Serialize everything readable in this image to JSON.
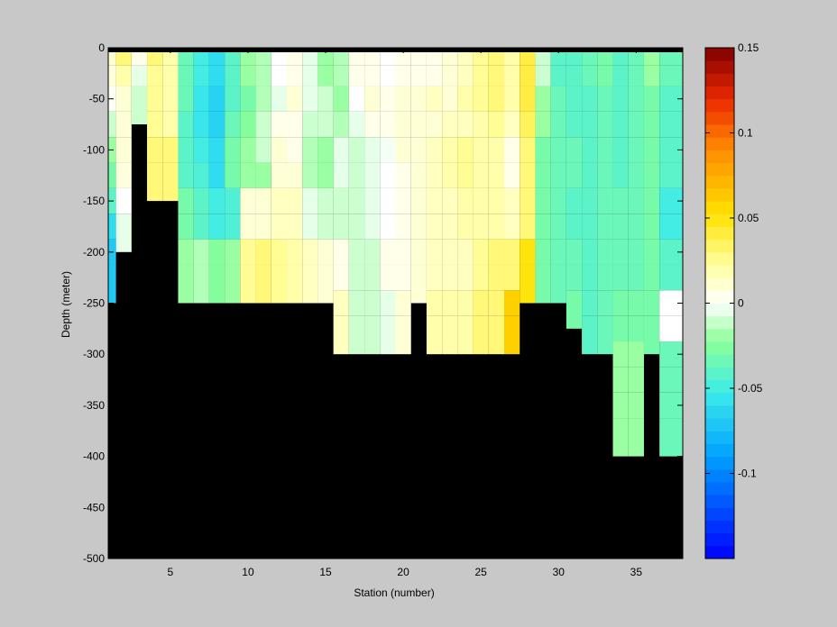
{
  "chart_data": {
    "type": "heatmap",
    "xlabel": "Station (number)",
    "ylabel": "Depth (meter)",
    "xlim": [
      1,
      38
    ],
    "ylim": [
      -500,
      0
    ],
    "xticks": [
      5,
      10,
      15,
      20,
      25,
      30,
      35
    ],
    "yticks": [
      0,
      -50,
      -100,
      -150,
      -200,
      -250,
      -300,
      -350,
      -400,
      -450,
      -500
    ],
    "colorbar": {
      "range": [
        -0.15,
        0.15
      ],
      "ticks": [
        0.15,
        0.1,
        0.05,
        0,
        -0.05,
        -0.1
      ],
      "tick_labels": [
        "0.15",
        "0.1",
        "0.05",
        "0",
        "-0.05",
        "-0.1"
      ],
      "colormap": "jet-white-center",
      "levels": 40
    },
    "depth_levels": [
      -10,
      -25,
      -50,
      -75,
      -100,
      -125,
      -150,
      -175,
      -200,
      -225,
      -250,
      -275,
      -300,
      -325,
      -350,
      -375,
      -400
    ],
    "grid": false,
    "mask_color": "#000000",
    "stations": [
      {
        "x": 1,
        "bottom": -250,
        "values": [
          0.01,
          0.008,
          0.002,
          -0.01,
          -0.02,
          -0.03,
          -0.04,
          -0.06,
          -0.07,
          -0.07
        ]
      },
      {
        "x": 2,
        "bottom": -200,
        "values": [
          0.03,
          0.02,
          0.01,
          0.01,
          0.01,
          0.008,
          0.0,
          -0.005
        ]
      },
      {
        "x": 3,
        "bottom": -75,
        "values": [
          0.005,
          -0.005,
          -0.01
        ]
      },
      {
        "x": 4,
        "bottom": -150,
        "values": [
          0.03,
          0.025,
          0.025,
          0.025,
          0.03,
          0.03
        ]
      },
      {
        "x": 5,
        "bottom": -150,
        "values": [
          0.02,
          0.02,
          0.02,
          0.02,
          0.03,
          0.03
        ]
      },
      {
        "x": 6,
        "bottom": -250,
        "values": [
          -0.035,
          -0.035,
          -0.035,
          -0.04,
          -0.04,
          -0.04,
          -0.03,
          -0.03,
          -0.02,
          -0.02
        ]
      },
      {
        "x": 7,
        "bottom": -250,
        "values": [
          -0.05,
          -0.05,
          -0.055,
          -0.055,
          -0.05,
          -0.045,
          -0.04,
          -0.04,
          -0.015,
          -0.015
        ]
      },
      {
        "x": 8,
        "bottom": -250,
        "values": [
          -0.06,
          -0.06,
          -0.065,
          -0.065,
          -0.06,
          -0.06,
          -0.05,
          -0.05,
          -0.025,
          -0.025
        ]
      },
      {
        "x": 9,
        "bottom": -250,
        "values": [
          -0.04,
          -0.04,
          -0.04,
          -0.035,
          -0.03,
          -0.03,
          -0.045,
          -0.045,
          -0.02,
          -0.02
        ]
      },
      {
        "x": 10,
        "bottom": -250,
        "values": [
          -0.02,
          -0.02,
          -0.03,
          -0.025,
          -0.02,
          -0.02,
          0.01,
          0.01,
          0.025,
          0.025
        ]
      },
      {
        "x": 11,
        "bottom": -250,
        "values": [
          -0.015,
          -0.015,
          -0.015,
          -0.01,
          -0.01,
          -0.02,
          0.01,
          0.01,
          0.03,
          0.03
        ]
      },
      {
        "x": 12,
        "bottom": -250,
        "values": [
          0.0,
          0.0,
          -0.005,
          0.005,
          0.01,
          0.01,
          0.015,
          0.015,
          0.025,
          0.025
        ]
      },
      {
        "x": 13,
        "bottom": -250,
        "values": [
          0.005,
          0.005,
          0.01,
          0.005,
          0.005,
          0.01,
          0.015,
          0.015,
          0.02,
          0.02
        ]
      },
      {
        "x": 14,
        "bottom": -250,
        "values": [
          -0.005,
          -0.005,
          -0.005,
          -0.01,
          -0.015,
          -0.015,
          -0.005,
          -0.005,
          0.015,
          0.015
        ]
      },
      {
        "x": 15,
        "bottom": -250,
        "values": [
          -0.02,
          -0.02,
          -0.01,
          -0.01,
          -0.02,
          -0.02,
          -0.01,
          -0.01,
          0.01,
          0.01
        ]
      },
      {
        "x": 16,
        "bottom": -300,
        "values": [
          -0.015,
          -0.015,
          -0.02,
          -0.015,
          -0.005,
          -0.005,
          -0.01,
          -0.01,
          0.005,
          0.005,
          0.015,
          0.015
        ]
      },
      {
        "x": 17,
        "bottom": -300,
        "values": [
          0.005,
          0.005,
          0.0,
          -0.005,
          -0.01,
          -0.01,
          -0.01,
          -0.01,
          -0.01,
          -0.01,
          -0.01,
          -0.01
        ]
      },
      {
        "x": 18,
        "bottom": -300,
        "values": [
          0.005,
          0.005,
          0.01,
          0.005,
          -0.005,
          -0.005,
          -0.005,
          -0.005,
          -0.01,
          -0.01,
          -0.01,
          -0.01
        ]
      },
      {
        "x": 19,
        "bottom": -300,
        "values": [
          0.0,
          0.0,
          0.005,
          0.005,
          -0.002,
          0.0,
          0.0,
          0.0,
          0.005,
          0.005,
          -0.005,
          -0.005
        ]
      },
      {
        "x": 20,
        "bottom": -300,
        "values": [
          0.005,
          0.005,
          0.01,
          0.01,
          0.01,
          0.005,
          0.005,
          0.005,
          0.005,
          0.005,
          0.01,
          0.01
        ]
      },
      {
        "x": 21,
        "bottom": -250,
        "values": [
          0.005,
          0.005,
          0.01,
          0.01,
          0.01,
          0.01,
          0.01,
          0.01,
          0.01,
          0.01
        ]
      },
      {
        "x": 22,
        "bottom": -300,
        "values": [
          0.005,
          0.005,
          0.015,
          0.01,
          0.015,
          0.015,
          0.015,
          0.015,
          0.015,
          0.015,
          0.02,
          0.02
        ]
      },
      {
        "x": 23,
        "bottom": -300,
        "values": [
          0.01,
          0.01,
          0.01,
          0.015,
          0.02,
          0.02,
          0.015,
          0.015,
          0.015,
          0.015,
          0.02,
          0.02
        ]
      },
      {
        "x": 24,
        "bottom": -300,
        "values": [
          0.015,
          0.015,
          0.02,
          0.015,
          0.025,
          0.025,
          0.02,
          0.02,
          0.015,
          0.015,
          0.02,
          0.02
        ]
      },
      {
        "x": 25,
        "bottom": -300,
        "values": [
          0.025,
          0.025,
          0.025,
          0.02,
          0.02,
          0.02,
          0.02,
          0.02,
          0.025,
          0.025,
          0.03,
          0.03
        ]
      },
      {
        "x": 26,
        "bottom": -300,
        "values": [
          0.03,
          0.03,
          0.03,
          0.025,
          0.02,
          0.02,
          0.02,
          0.02,
          0.03,
          0.03,
          0.03,
          0.03
        ]
      },
      {
        "x": 27,
        "bottom": -300,
        "values": [
          0.02,
          0.02,
          0.02,
          0.015,
          0.005,
          0.005,
          0.015,
          0.015,
          0.03,
          0.03,
          0.06,
          0.06
        ]
      },
      {
        "x": 28,
        "bottom": -250,
        "values": [
          0.04,
          0.04,
          0.04,
          0.035,
          0.03,
          0.03,
          0.03,
          0.03,
          0.05,
          0.05
        ]
      },
      {
        "x": 29,
        "bottom": -250,
        "values": [
          -0.01,
          -0.01,
          -0.02,
          -0.02,
          -0.03,
          -0.03,
          -0.03,
          -0.03,
          -0.03,
          -0.03
        ]
      },
      {
        "x": 30,
        "bottom": -250,
        "values": [
          -0.04,
          -0.04,
          -0.035,
          -0.035,
          -0.035,
          -0.035,
          -0.035,
          -0.035,
          -0.035,
          -0.035
        ]
      },
      {
        "x": 31,
        "bottom": -275,
        "values": [
          -0.04,
          -0.04,
          -0.04,
          -0.04,
          -0.035,
          -0.035,
          -0.04,
          -0.04,
          -0.035,
          -0.035,
          -0.03
        ]
      },
      {
        "x": 32,
        "bottom": -300,
        "values": [
          -0.035,
          -0.035,
          -0.04,
          -0.04,
          -0.04,
          -0.04,
          -0.04,
          -0.04,
          -0.04,
          -0.04,
          -0.04,
          -0.04
        ]
      },
      {
        "x": 33,
        "bottom": -300,
        "values": [
          -0.03,
          -0.03,
          -0.035,
          -0.035,
          -0.035,
          -0.035,
          -0.035,
          -0.035,
          -0.035,
          -0.035,
          -0.035,
          -0.035
        ]
      },
      {
        "x": 34,
        "bottom": -400,
        "values": [
          -0.04,
          -0.04,
          -0.04,
          -0.04,
          -0.04,
          -0.04,
          -0.035,
          -0.035,
          -0.035,
          -0.035,
          -0.03,
          -0.03,
          -0.02,
          -0.02,
          -0.02,
          -0.02
        ]
      },
      {
        "x": 35,
        "bottom": -400,
        "values": [
          -0.035,
          -0.035,
          -0.035,
          -0.035,
          -0.035,
          -0.035,
          -0.035,
          -0.035,
          -0.035,
          -0.035,
          -0.03,
          -0.03,
          -0.02,
          -0.02,
          -0.02,
          -0.02
        ]
      },
      {
        "x": 36,
        "bottom": -300,
        "values": [
          -0.02,
          -0.02,
          -0.03,
          -0.03,
          -0.03,
          -0.03,
          -0.03,
          -0.03,
          -0.03,
          -0.03,
          -0.03,
          -0.03
        ]
      },
      {
        "x": 37,
        "bottom": -400,
        "values": [
          -0.035,
          -0.035,
          -0.04,
          -0.04,
          -0.04,
          -0.04,
          -0.05,
          -0.05,
          -0.04,
          -0.04,
          0.0,
          0.0,
          -0.035,
          -0.035,
          -0.035,
          -0.035
        ]
      }
    ]
  }
}
